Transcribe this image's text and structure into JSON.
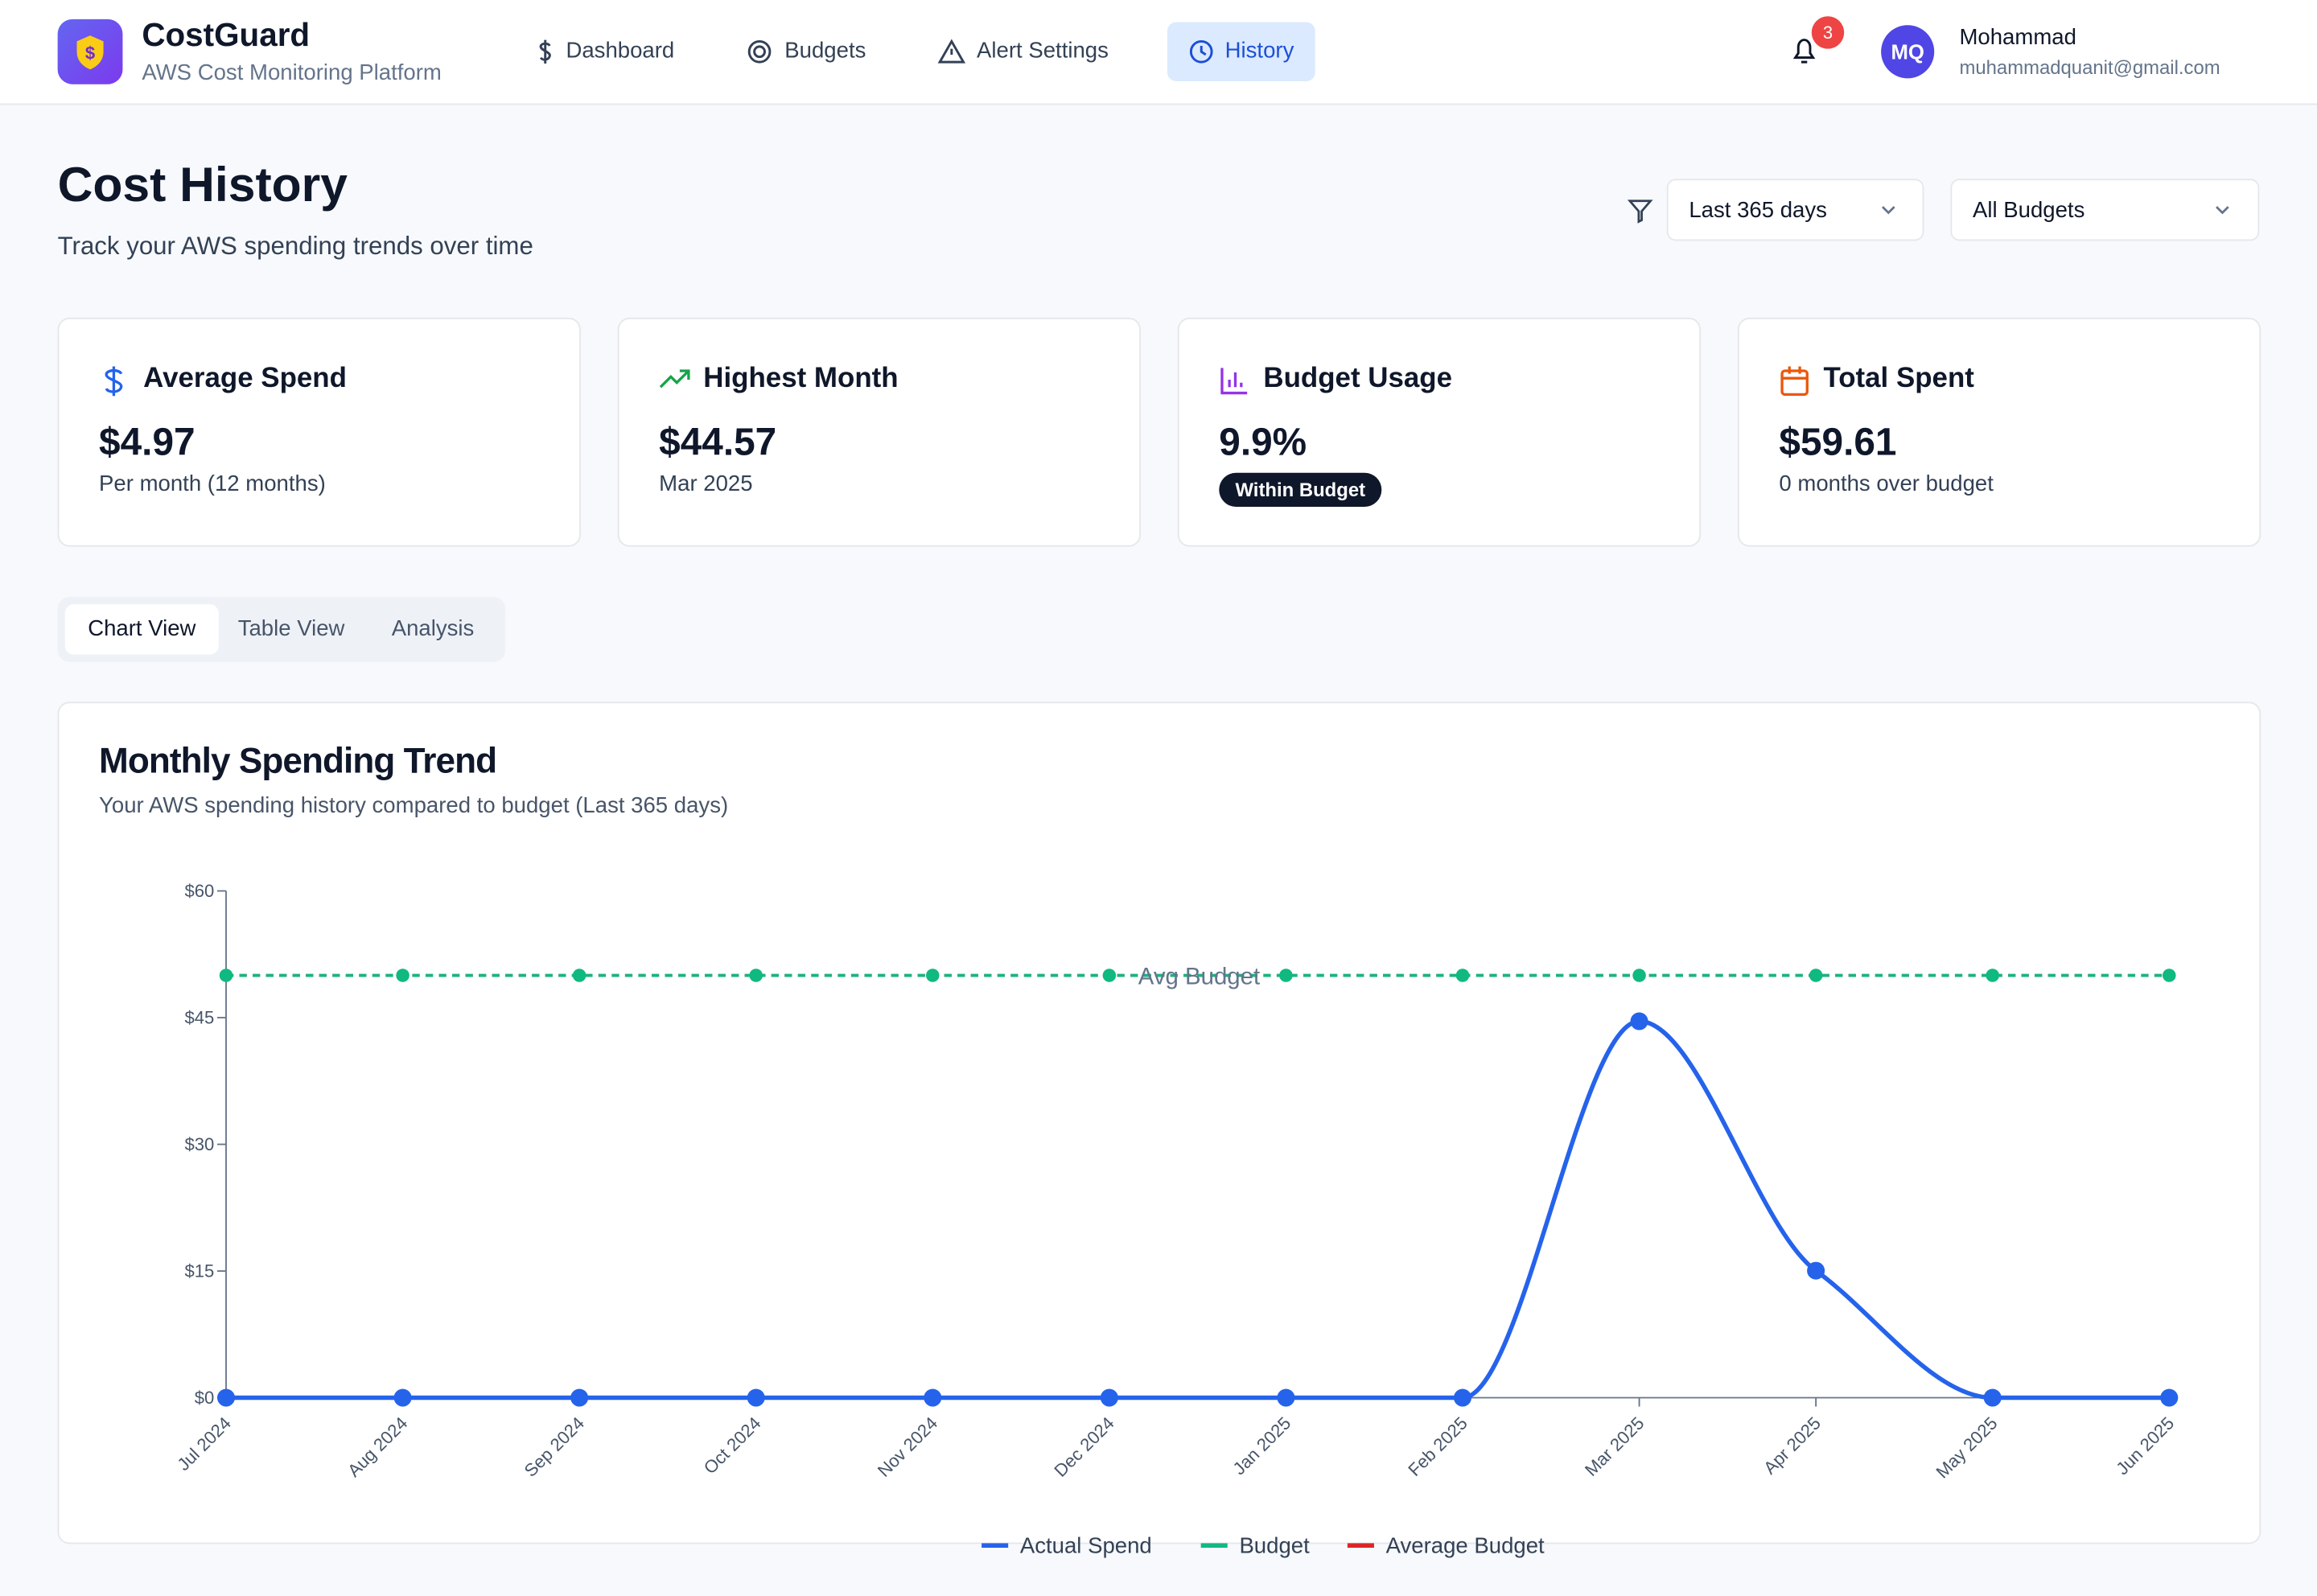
{
  "header": {
    "brand": "CostGuard",
    "tagline": "AWS Cost Monitoring Platform",
    "nav": [
      "Dashboard",
      "Budgets",
      "Alert Settings",
      "History"
    ],
    "notifications": 3,
    "avatar": "MQ",
    "user_name": "Mohammad",
    "user_email": "muhammadquanit@gmail.com"
  },
  "page": {
    "title": "Cost History",
    "subtitle": "Track your AWS spending trends over time",
    "filters": [
      "Last 365 days",
      "All Budgets"
    ]
  },
  "stats": [
    {
      "title": "Average Spend",
      "value": "$4.97",
      "note": "Per month (12 months)"
    },
    {
      "title": "Highest Month",
      "value": "$44.57",
      "note": "Mar 2025"
    },
    {
      "title": "Budget Usage",
      "value": "9.9%",
      "badge": "Within Budget"
    },
    {
      "title": "Total Spent",
      "value": "$59.61",
      "note": "0 months over budget"
    }
  ],
  "tabs": [
    "Chart View",
    "Table View",
    "Analysis"
  ],
  "chart_data": {
    "type": "line",
    "title": "Monthly Spending Trend",
    "subtitle": "Your AWS spending history compared to budget (Last 365 days)",
    "categories": [
      "Jul 2024",
      "Aug 2024",
      "Sep 2024",
      "Oct 2024",
      "Nov 2024",
      "Dec 2024",
      "Jan 2025",
      "Feb 2025",
      "Mar 2025",
      "Apr 2025",
      "May 2025",
      "Jun 2025"
    ],
    "series": [
      {
        "name": "Actual Spend",
        "color": "#2563eb",
        "values": [
          0,
          0,
          0,
          0,
          0,
          0,
          0,
          0,
          44.57,
          15.04,
          0,
          0
        ]
      },
      {
        "name": "Budget",
        "color": "#10b981",
        "line_style": "dashed",
        "values": [
          50,
          50,
          50,
          50,
          50,
          50,
          50,
          50,
          50,
          50,
          50,
          50
        ]
      },
      {
        "name": "Average Budget",
        "color": "#dc2626",
        "line_style": "dashed",
        "values": [
          50,
          50,
          50,
          50,
          50,
          50,
          50,
          50,
          50,
          50,
          50,
          50
        ]
      }
    ],
    "annotation": "Avg Budget",
    "ylim": [
      0,
      60
    ],
    "yticks": [
      {
        "value": 0,
        "label": "$0"
      },
      {
        "value": 15,
        "label": "$15"
      },
      {
        "value": 30,
        "label": "$30"
      },
      {
        "value": 45,
        "label": "$45"
      },
      {
        "value": 60,
        "label": "$60"
      }
    ]
  }
}
